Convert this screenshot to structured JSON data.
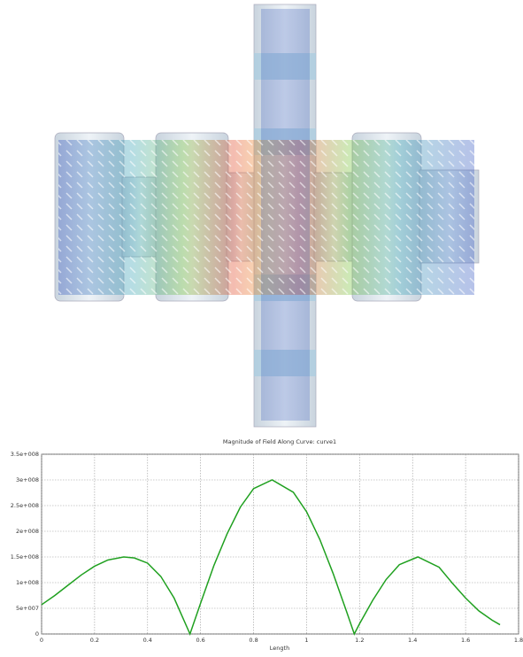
{
  "chart_data": {
    "type": "line",
    "title": "Magnitude of Field Along Curve: curve1",
    "x_label": "Length",
    "x": [
      0,
      0.05,
      0.1,
      0.15,
      0.2,
      0.25,
      0.31,
      0.35,
      0.4,
      0.45,
      0.5,
      0.56,
      0.6,
      0.65,
      0.7,
      0.75,
      0.8,
      0.87,
      0.95,
      1.0,
      1.05,
      1.1,
      1.15,
      1.18,
      1.2,
      1.25,
      1.3,
      1.35,
      1.42,
      1.5,
      1.55,
      1.6,
      1.65,
      1.7,
      1.73
    ],
    "series": [
      {
        "color": "#1fa01f",
        "values": [
          57000000,
          75000000,
          95000000,
          115000000,
          132000000,
          144000000,
          150000000,
          148000000,
          138000000,
          112000000,
          70000000,
          0,
          60000000,
          133000000,
          195000000,
          247000000,
          283000000,
          300000000,
          276000000,
          238000000,
          184000000,
          118000000,
          45000000,
          0,
          20000000,
          66000000,
          106000000,
          135000000,
          150000000,
          130000000,
          99000000,
          70000000,
          45000000,
          27000000,
          18000000
        ]
      }
    ],
    "xlim": [
      0,
      1.8
    ],
    "xticks": [
      0,
      0.2,
      0.4,
      0.6,
      0.8,
      1,
      1.2,
      1.4,
      1.6,
      1.8
    ],
    "ylim": [
      0,
      350000000
    ],
    "yticks": [
      0,
      {
        "value": 50000000,
        "label": "5e+007"
      },
      {
        "value": 100000000,
        "label": "1e+008"
      },
      {
        "value": 150000000,
        "label": "1.5e+008"
      },
      {
        "value": 200000000,
        "label": "2e+008"
      },
      {
        "value": 250000000,
        "label": "2.5e+008"
      },
      {
        "value": 300000000,
        "label": "3e+008"
      },
      {
        "value": 350000000,
        "label": "3.5e+008"
      }
    ],
    "grid": true
  }
}
